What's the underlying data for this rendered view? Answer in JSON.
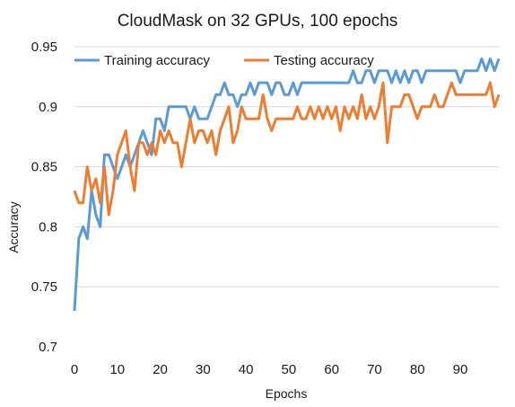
{
  "chart_data": {
    "type": "line",
    "title": "CloudMask on 32 GPUs, 100 epochs",
    "xlabel": "Epochs",
    "ylabel": "Accuracy",
    "xlim": [
      0,
      99
    ],
    "ylim": [
      0.7,
      0.95
    ],
    "xticks": [
      0,
      10,
      20,
      30,
      40,
      50,
      60,
      70,
      80,
      90
    ],
    "yticks": [
      "0.7",
      "0.75",
      "0.8",
      "0.85",
      "0.9",
      "0.95"
    ],
    "grid": "horizontal",
    "legend_position": "top",
    "series": [
      {
        "name": "Training accuracy",
        "color": "#5b9bd5",
        "values": [
          0.73,
          0.79,
          0.8,
          0.79,
          0.83,
          0.81,
          0.8,
          0.86,
          0.86,
          0.85,
          0.84,
          0.85,
          0.86,
          0.85,
          0.86,
          0.87,
          0.88,
          0.87,
          0.86,
          0.89,
          0.89,
          0.88,
          0.9,
          0.9,
          0.9,
          0.9,
          0.9,
          0.89,
          0.9,
          0.89,
          0.89,
          0.89,
          0.9,
          0.91,
          0.91,
          0.92,
          0.91,
          0.91,
          0.9,
          0.91,
          0.91,
          0.92,
          0.91,
          0.92,
          0.92,
          0.92,
          0.91,
          0.92,
          0.92,
          0.91,
          0.91,
          0.92,
          0.91,
          0.92,
          0.92,
          0.92,
          0.92,
          0.92,
          0.92,
          0.92,
          0.92,
          0.92,
          0.92,
          0.92,
          0.92,
          0.93,
          0.92,
          0.92,
          0.93,
          0.93,
          0.92,
          0.93,
          0.93,
          0.93,
          0.92,
          0.93,
          0.92,
          0.93,
          0.92,
          0.93,
          0.93,
          0.92,
          0.93,
          0.93,
          0.93,
          0.93,
          0.93,
          0.93,
          0.93,
          0.93,
          0.92,
          0.93,
          0.93,
          0.93,
          0.93,
          0.94,
          0.93,
          0.94,
          0.93,
          0.94
        ]
      },
      {
        "name": "Testing accuracy",
        "color": "#ed7d31",
        "values": [
          0.83,
          0.82,
          0.82,
          0.85,
          0.83,
          0.84,
          0.82,
          0.85,
          0.81,
          0.83,
          0.86,
          0.87,
          0.88,
          0.85,
          0.83,
          0.87,
          0.87,
          0.86,
          0.87,
          0.86,
          0.88,
          0.87,
          0.88,
          0.87,
          0.87,
          0.85,
          0.87,
          0.89,
          0.87,
          0.88,
          0.88,
          0.87,
          0.88,
          0.86,
          0.88,
          0.89,
          0.9,
          0.87,
          0.88,
          0.9,
          0.89,
          0.89,
          0.89,
          0.89,
          0.91,
          0.89,
          0.88,
          0.89,
          0.89,
          0.89,
          0.89,
          0.89,
          0.9,
          0.89,
          0.89,
          0.9,
          0.89,
          0.9,
          0.89,
          0.9,
          0.89,
          0.9,
          0.88,
          0.9,
          0.89,
          0.9,
          0.89,
          0.91,
          0.89,
          0.9,
          0.89,
          0.9,
          0.92,
          0.87,
          0.9,
          0.9,
          0.9,
          0.91,
          0.91,
          0.9,
          0.89,
          0.9,
          0.9,
          0.9,
          0.91,
          0.9,
          0.9,
          0.91,
          0.92,
          0.91,
          0.91,
          0.91,
          0.91,
          0.91,
          0.91,
          0.91,
          0.91,
          0.92,
          0.9,
          0.91
        ]
      }
    ]
  }
}
